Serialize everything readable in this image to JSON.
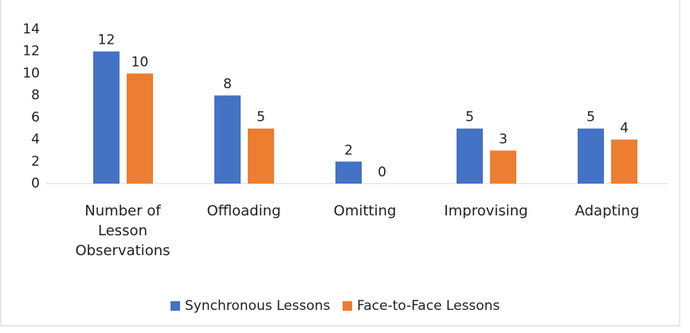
{
  "chart_data": {
    "type": "bar",
    "categories": [
      "Number of Lesson Observations",
      "Offloading",
      "Omitting",
      "Improvising",
      "Adapting"
    ],
    "series": [
      {
        "name": "Synchronous Lessons",
        "color": "#4472c4",
        "values": [
          12,
          8,
          2,
          5,
          5
        ]
      },
      {
        "name": "Face-to-Face Lessons",
        "color": "#ed7d31",
        "values": [
          10,
          5,
          0,
          3,
          4
        ]
      }
    ],
    "ylim": [
      0,
      14
    ],
    "yticks": [
      0,
      2,
      4,
      6,
      8,
      10,
      12,
      14
    ],
    "grid": false,
    "legend": "bottom"
  }
}
